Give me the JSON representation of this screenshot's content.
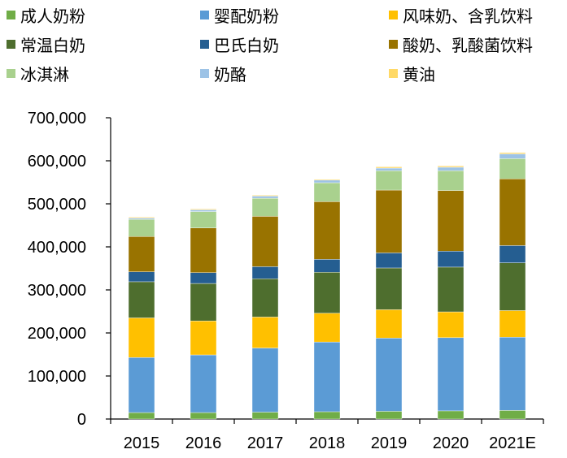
{
  "chart_data": {
    "type": "bar",
    "stacked": true,
    "categories": [
      "2015",
      "2016",
      "2017",
      "2018",
      "2019",
      "2020",
      "2021E"
    ],
    "ylim": [
      0,
      700000
    ],
    "yticks": [
      "0",
      "100,000",
      "200,000",
      "300,000",
      "400,000",
      "500,000",
      "600,000",
      "700,000"
    ],
    "grid": false,
    "legend_position": "top",
    "series": [
      {
        "name": "成人奶粉",
        "color": "#70AD47",
        "values": [
          15000,
          15000,
          16000,
          17000,
          18000,
          19000,
          20000
        ]
      },
      {
        "name": "婴配奶粉",
        "color": "#5B9BD5",
        "values": [
          128000,
          134000,
          149000,
          162000,
          170000,
          170000,
          170000
        ]
      },
      {
        "name": "风味奶、含乳饮料",
        "color": "#FFC000",
        "values": [
          92000,
          79000,
          72000,
          67000,
          66000,
          60000,
          62000
        ]
      },
      {
        "name": "常温白奶",
        "color": "#4E6E2E",
        "values": [
          84000,
          87000,
          89000,
          95000,
          97000,
          104000,
          111000
        ]
      },
      {
        "name": "巴氏白奶",
        "color": "#255E91",
        "values": [
          23000,
          25000,
          28000,
          30000,
          35000,
          37000,
          40000
        ]
      },
      {
        "name": "酸奶、乳酸菌饮料",
        "color": "#997300",
        "values": [
          82000,
          104000,
          117000,
          134000,
          146000,
          141000,
          155000
        ]
      },
      {
        "name": "冰淇淋",
        "color": "#A9D18E",
        "values": [
          40000,
          38000,
          42000,
          44000,
          45000,
          46000,
          47000
        ]
      },
      {
        "name": "奶酪",
        "color": "#9DC3E6",
        "values": [
          3000,
          4000,
          5000,
          6000,
          6000,
          8000,
          11000
        ]
      },
      {
        "name": "黄油",
        "color": "#FFD966",
        "values": [
          2000,
          2000,
          2000,
          2000,
          3000,
          3000,
          3000
        ]
      }
    ]
  }
}
